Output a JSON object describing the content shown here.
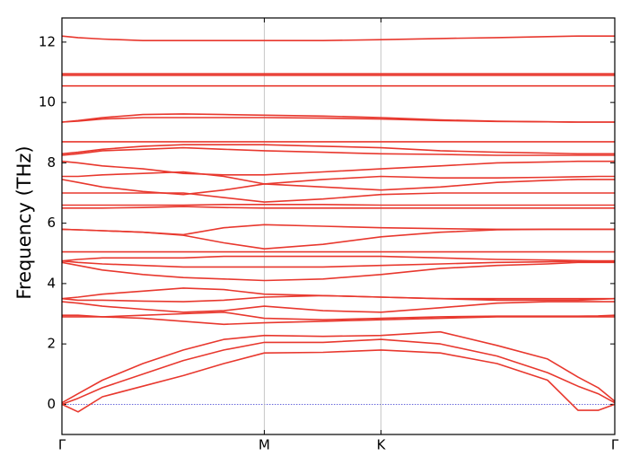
{
  "chart_data": {
    "type": "line",
    "ylabel": "Frequency (THz)",
    "xlim": [
      0,
      2.732
    ],
    "ylim": [
      -1,
      12.8
    ],
    "xticks": [
      {
        "value": 0,
        "label": "Γ"
      },
      {
        "value": 1,
        "label": "M"
      },
      {
        "value": 1.577,
        "label": "K"
      },
      {
        "value": 2.732,
        "label": "Γ"
      }
    ],
    "yticks": [
      0,
      2,
      4,
      6,
      8,
      10,
      12
    ],
    "color": "#e8382e",
    "reference_line": {
      "value": 0,
      "color": "#3a3ad0"
    },
    "x": [
      0,
      0.08,
      0.2,
      0.4,
      0.6,
      0.8,
      1,
      1.29,
      1.577,
      1.87,
      2.15,
      2.4,
      2.55,
      2.65,
      2.732
    ],
    "series": [
      {
        "values": [
          0,
          -0.25,
          0.25,
          0.6,
          0.95,
          1.35,
          1.7,
          1.72,
          1.8,
          1.7,
          1.35,
          0.8,
          -0.2,
          -0.2,
          0
        ]
      },
      {
        "values": [
          0,
          0.2,
          0.55,
          1.0,
          1.45,
          1.8,
          2.05,
          2.05,
          2.15,
          2.0,
          1.6,
          1.05,
          0.6,
          0.35,
          0.05
        ]
      },
      {
        "values": [
          0.05,
          0.35,
          0.8,
          1.35,
          1.8,
          2.15,
          2.28,
          2.25,
          2.28,
          2.4,
          1.95,
          1.5,
          0.9,
          0.55,
          0.1
        ]
      },
      {
        "values": [
          2.9,
          2.9,
          2.9,
          2.85,
          2.75,
          2.65,
          2.7,
          2.75,
          2.8,
          2.85,
          2.9,
          2.9,
          2.9,
          2.9,
          2.9
        ]
      },
      {
        "values": [
          2.95,
          2.95,
          2.9,
          2.95,
          3.0,
          3.05,
          2.85,
          2.8,
          2.85,
          2.9,
          2.92,
          2.92,
          2.92,
          2.93,
          2.95
        ]
      },
      {
        "values": [
          3.4,
          3.35,
          3.25,
          3.15,
          3.05,
          3.1,
          3.25,
          3.1,
          3.05,
          3.2,
          3.35,
          3.4,
          3.4,
          3.4,
          3.4
        ]
      },
      {
        "values": [
          3.5,
          3.55,
          3.65,
          3.75,
          3.85,
          3.8,
          3.65,
          3.6,
          3.55,
          3.5,
          3.5,
          3.5,
          3.5,
          3.5,
          3.5
        ]
      },
      {
        "values": [
          3.5,
          3.45,
          3.45,
          3.42,
          3.4,
          3.45,
          3.55,
          3.6,
          3.55,
          3.5,
          3.45,
          3.45,
          3.45,
          3.48,
          3.5
        ]
      },
      {
        "values": [
          4.7,
          4.6,
          4.45,
          4.3,
          4.2,
          4.15,
          4.1,
          4.15,
          4.3,
          4.5,
          4.6,
          4.65,
          4.7,
          4.7,
          4.7
        ]
      },
      {
        "values": [
          4.75,
          4.7,
          4.65,
          4.6,
          4.55,
          4.55,
          4.55,
          4.55,
          4.6,
          4.65,
          4.7,
          4.72,
          4.74,
          4.75,
          4.75
        ]
      },
      {
        "values": [
          4.75,
          4.8,
          4.85,
          4.85,
          4.85,
          4.9,
          4.9,
          4.9,
          4.9,
          4.85,
          4.8,
          4.78,
          4.76,
          4.75,
          4.75
        ]
      },
      {
        "values": [
          5.05,
          5.05,
          5.05,
          5.05,
          5.05,
          5.05,
          5.05,
          5.05,
          5.05,
          5.05,
          5.05,
          5.05,
          5.05,
          5.05,
          5.05
        ]
      },
      {
        "values": [
          5.8,
          5.78,
          5.75,
          5.7,
          5.6,
          5.35,
          5.15,
          5.3,
          5.55,
          5.7,
          5.78,
          5.8,
          5.8,
          5.8,
          5.8
        ]
      },
      {
        "values": [
          5.8,
          5.78,
          5.75,
          5.7,
          5.62,
          5.85,
          5.95,
          5.9,
          5.85,
          5.82,
          5.8,
          5.8,
          5.8,
          5.8,
          5.8
        ]
      },
      {
        "values": [
          6.5,
          6.5,
          6.5,
          6.52,
          6.55,
          6.52,
          6.5,
          6.5,
          6.5,
          6.5,
          6.5,
          6.5,
          6.5,
          6.5,
          6.5
        ]
      },
      {
        "values": [
          6.6,
          6.6,
          6.6,
          6.6,
          6.6,
          6.62,
          6.62,
          6.62,
          6.6,
          6.6,
          6.6,
          6.6,
          6.6,
          6.6,
          6.6
        ]
      },
      {
        "values": [
          7.0,
          7.0,
          7.0,
          7.0,
          7.0,
          6.85,
          6.7,
          6.8,
          6.95,
          7.0,
          7.0,
          7.0,
          7.0,
          7.0,
          7.0
        ]
      },
      {
        "values": [
          7.45,
          7.35,
          7.2,
          7.05,
          6.95,
          7.1,
          7.3,
          7.2,
          7.1,
          7.2,
          7.35,
          7.42,
          7.45,
          7.45,
          7.45
        ]
      },
      {
        "values": [
          7.55,
          7.55,
          7.6,
          7.65,
          7.7,
          7.55,
          7.3,
          7.45,
          7.55,
          7.5,
          7.5,
          7.52,
          7.54,
          7.55,
          7.55
        ]
      },
      {
        "values": [
          8.05,
          8.0,
          7.9,
          7.8,
          7.65,
          7.6,
          7.6,
          7.7,
          7.8,
          7.9,
          8.0,
          8.03,
          8.05,
          8.05,
          8.05
        ]
      },
      {
        "values": [
          8.25,
          8.3,
          8.4,
          8.45,
          8.5,
          8.45,
          8.4,
          8.35,
          8.3,
          8.28,
          8.25,
          8.25,
          8.25,
          8.25,
          8.25
        ]
      },
      {
        "values": [
          8.3,
          8.35,
          8.45,
          8.55,
          8.6,
          8.6,
          8.6,
          8.55,
          8.5,
          8.4,
          8.35,
          8.32,
          8.3,
          8.3,
          8.3
        ]
      },
      {
        "values": [
          8.7,
          8.7,
          8.7,
          8.7,
          8.7,
          8.7,
          8.7,
          8.7,
          8.7,
          8.7,
          8.7,
          8.7,
          8.7,
          8.7,
          8.7
        ]
      },
      {
        "values": [
          9.35,
          9.38,
          9.45,
          9.5,
          9.5,
          9.5,
          9.5,
          9.48,
          9.45,
          9.4,
          9.37,
          9.36,
          9.35,
          9.35,
          9.35
        ]
      },
      {
        "values": [
          9.35,
          9.4,
          9.5,
          9.6,
          9.62,
          9.6,
          9.58,
          9.55,
          9.5,
          9.42,
          9.38,
          9.36,
          9.35,
          9.35,
          9.35
        ]
      },
      {
        "values": [
          10.55,
          10.55,
          10.55,
          10.55,
          10.55,
          10.55,
          10.55,
          10.55,
          10.55,
          10.55,
          10.55,
          10.55,
          10.55,
          10.55,
          10.55
        ]
      },
      {
        "values": [
          10.9,
          10.9,
          10.9,
          10.9,
          10.9,
          10.9,
          10.9,
          10.9,
          10.9,
          10.9,
          10.9,
          10.9,
          10.9,
          10.9,
          10.9
        ]
      },
      {
        "values": [
          10.95,
          10.95,
          10.95,
          10.95,
          10.95,
          10.95,
          10.95,
          10.95,
          10.95,
          10.95,
          10.95,
          10.95,
          10.95,
          10.95,
          10.95
        ]
      },
      {
        "values": [
          12.2,
          12.15,
          12.1,
          12.05,
          12.05,
          12.05,
          12.05,
          12.05,
          12.08,
          12.12,
          12.15,
          12.18,
          12.2,
          12.2,
          12.2
        ]
      }
    ]
  }
}
